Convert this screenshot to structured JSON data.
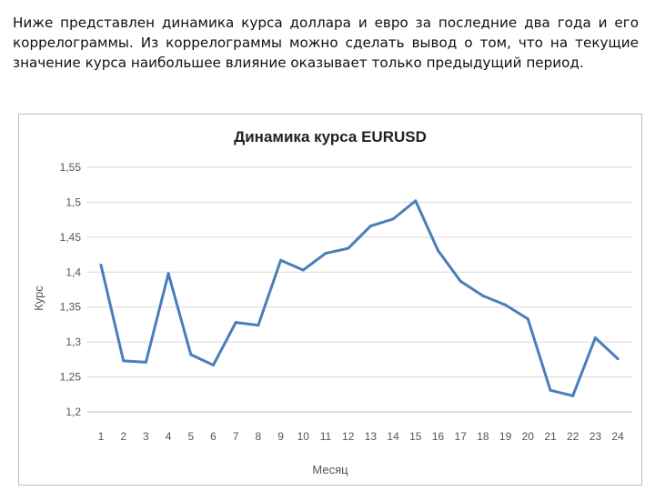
{
  "intro_text": "Ниже представлен динамика курса доллара и евро за последние два года и его коррелограммы. Из коррелограммы можно сделать вывод о том, что на текущие значение курса наибольшее влияние оказывает только предыдущий период.",
  "chart_data": {
    "type": "line",
    "title": "Динамика курса EURUSD",
    "xlabel": "Месяц",
    "ylabel": "Курс",
    "categories": [
      "1",
      "2",
      "3",
      "4",
      "5",
      "6",
      "7",
      "8",
      "9",
      "10",
      "11",
      "12",
      "13",
      "14",
      "15",
      "16",
      "17",
      "18",
      "19",
      "20",
      "21",
      "22",
      "23",
      "24"
    ],
    "series": [
      {
        "values": [
          1.41,
          1.273,
          1.271,
          1.398,
          1.282,
          1.267,
          1.328,
          1.324,
          1.417,
          1.403,
          1.427,
          1.434,
          1.466,
          1.476,
          1.502,
          1.431,
          1.387,
          1.366,
          1.353,
          1.333,
          1.231,
          1.223,
          1.306,
          1.276
        ]
      }
    ],
    "ylim": [
      1.2,
      1.55
    ],
    "yticks": [
      "1,2",
      "1,25",
      "1,3",
      "1,35",
      "1,4",
      "1,45",
      "1,5",
      "1,55"
    ],
    "ytick_values": [
      1.2,
      1.25,
      1.3,
      1.35,
      1.4,
      1.45,
      1.5,
      1.55
    ],
    "grid": true,
    "legend": "none",
    "line_color": "#4a7ebb"
  }
}
